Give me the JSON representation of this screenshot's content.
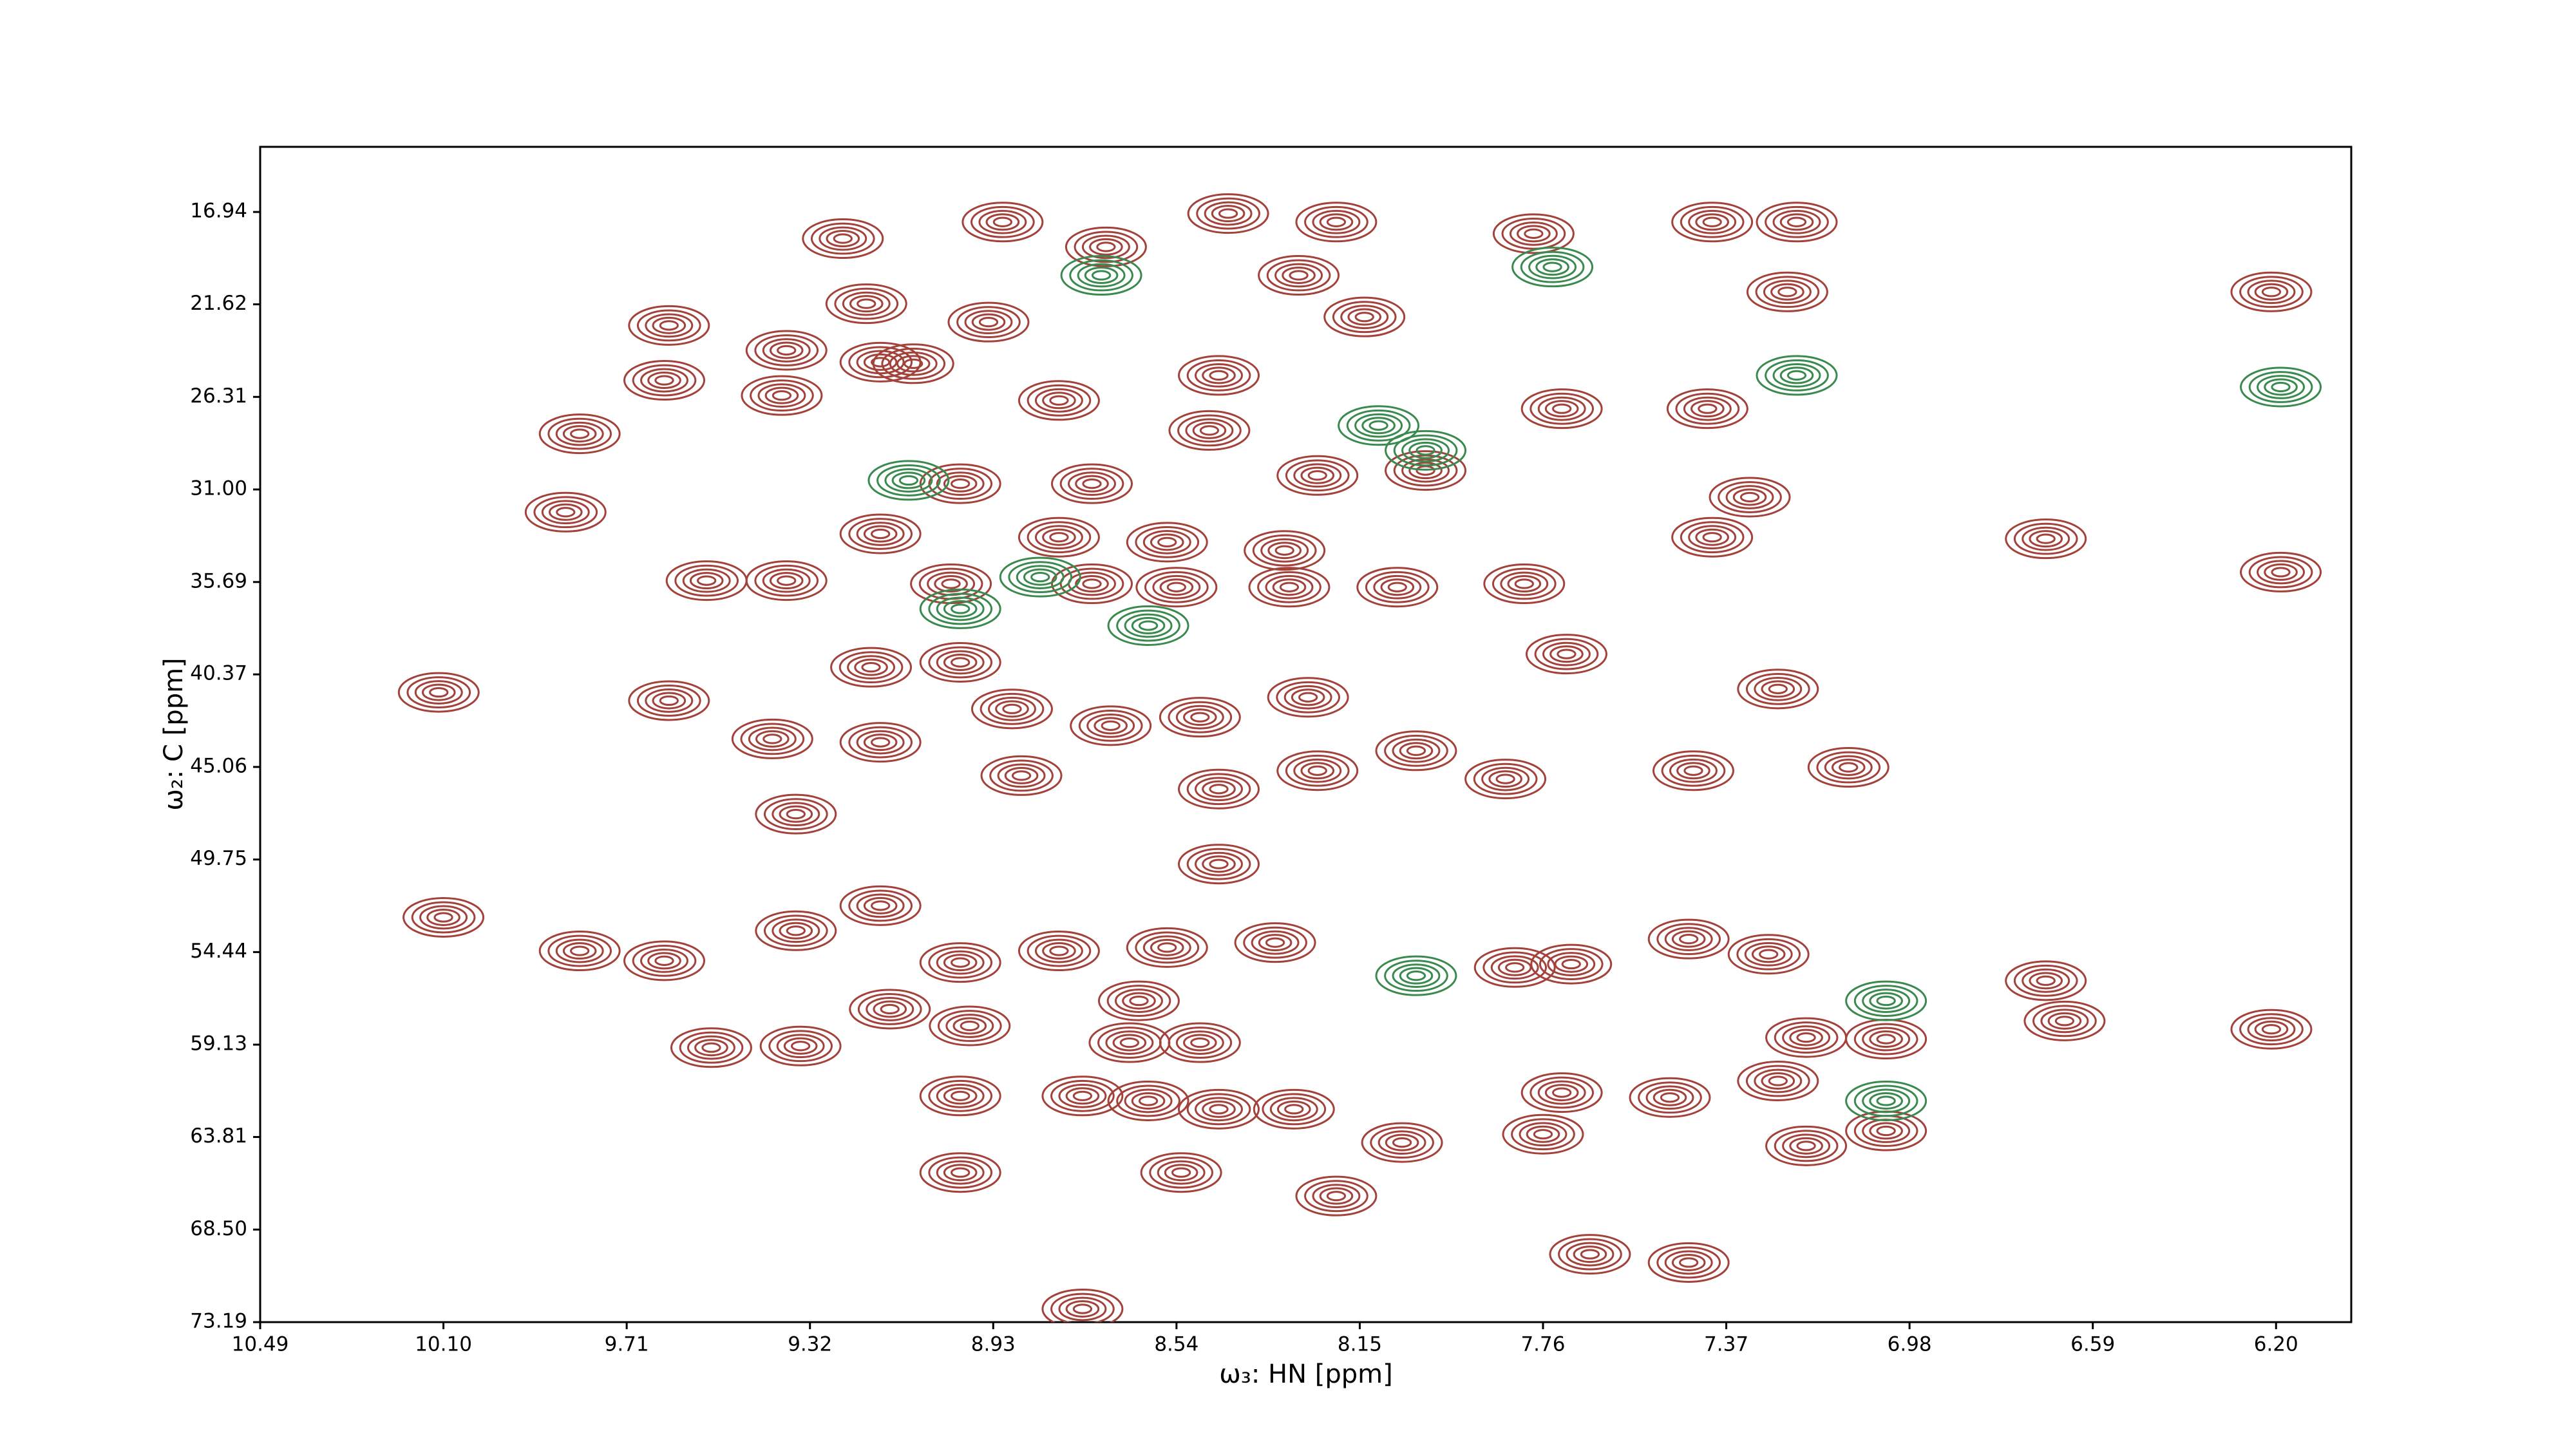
{
  "chart_data": {
    "type": "contour",
    "xlabel": "ω₃: HN [ppm]",
    "ylabel": "ω₂: C [ppm]",
    "xlim": [
      10.49,
      6.04
    ],
    "ylim": [
      73.19,
      13.64
    ],
    "xticks": [
      10.49,
      {
        "value": 10.1,
        "label": "10.10"
      },
      9.71,
      9.32,
      8.93,
      8.54,
      8.15,
      7.76,
      7.37,
      6.98,
      6.59,
      {
        "value": 6.2,
        "label": "6.20"
      }
    ],
    "yticks": [
      16.94,
      21.62,
      26.31,
      {
        "value": 31,
        "label": "31.00"
      },
      35.69,
      40.37,
      45.06,
      49.75,
      54.44,
      59.13,
      63.81,
      {
        "value": 68.5,
        "label": "68.50"
      },
      73.19
    ],
    "series": [
      {
        "color": "#a3413b",
        "x": [
          10.11,
          10.1,
          9.62,
          9.63,
          9.81,
          9.84,
          9.54,
          9.37,
          9.62,
          9.4,
          9.35,
          9.63,
          9.81,
          9.53,
          9.34,
          9.35,
          9.17,
          9.25,
          9.2,
          9.37,
          9.38,
          9.17,
          9.1,
          8.94,
          8.91,
          8.79,
          8.69,
          8.43,
          8.2,
          8.28,
          8.14,
          8.45,
          8.47,
          9.0,
          8.72,
          8.24,
          8.01,
          9.17,
          8.79,
          8.56,
          8.31,
          9.02,
          8.72,
          8.54,
          8.3,
          8.07,
          7.8,
          9.19,
          9.0,
          8.89,
          8.68,
          8.49,
          8.26,
          9.17,
          8.87,
          8.45,
          8.24,
          8.03,
          7.84,
          7.44,
          7.11,
          7.78,
          7.4,
          7.22,
          7.24,
          7.41,
          7.72,
          7.32,
          7.4,
          7.71,
          7.26,
          6.69,
          6.21,
          6.19,
          8.45,
          9.0,
          8.79,
          8.56,
          8.33,
          9.15,
          8.98,
          8.62,
          8.49,
          8.74,
          9.0,
          8.6,
          8.45,
          8.29,
          8.64,
          8.06,
          9.0,
          8.53,
          8.2,
          7.82,
          7.7,
          7.45,
          7.28,
          7.72,
          7.49,
          7.2,
          7.03,
          7.26,
          7.2,
          7.03,
          7.76,
          7.66,
          7.45,
          8.74,
          6.65,
          6.21,
          6.69
        ],
        "values": [
          41.28,
          52.68,
          22.69,
          25.47,
          28.18,
          32.15,
          35.62,
          35.62,
          41.7,
          43.64,
          47.45,
          54.88,
          54.38,
          59.28,
          59.2,
          53.36,
          52.09,
          18.29,
          21.59,
          23.95,
          26.24,
          24.55,
          24.63,
          22.52,
          17.45,
          26.49,
          18.71,
          17.02,
          17.45,
          20.15,
          22.26,
          25.22,
          28.01,
          30.71,
          30.71,
          30.29,
          30.04,
          33.25,
          33.42,
          33.67,
          34.09,
          35.78,
          35.78,
          35.95,
          35.95,
          35.95,
          35.78,
          40.01,
          39.76,
          42.12,
          42.97,
          42.54,
          41.53,
          43.81,
          45.5,
          46.18,
          45.25,
          44.24,
          45.67,
          45.25,
          45.08,
          18.04,
          17.45,
          17.45,
          20.99,
          26.91,
          26.91,
          31.39,
          33.42,
          39.34,
          41.11,
          33.5,
          20.99,
          35.19,
          49.98,
          54.97,
          54.38,
          54.21,
          53.96,
          57.33,
          58.18,
          56.91,
          59.03,
          61.73,
          61.73,
          61.98,
          62.4,
          62.4,
          59.03,
          64.09,
          65.61,
          65.61,
          66.8,
          55.22,
          55.05,
          53.78,
          54.55,
          61.56,
          61.81,
          58.77,
          58.85,
          60.97,
          64.26,
          63.5,
          63.67,
          69.75,
          70.17,
          72.52,
          57.93,
          58.35,
          55.89
        ]
      },
      {
        "color": "#3a8a4f",
        "x": [
          9.11,
          8.11,
          8.01,
          7.74,
          8.03,
          7.03,
          7.03,
          9.0,
          8.6,
          8.7,
          7.22,
          6.19,
          8.83
        ],
        "values": [
          30.54,
          27.76,
          29.02,
          19.73,
          55.64,
          56.91,
          61.98,
          37.05,
          37.9,
          20.15,
          25.22,
          25.81,
          35.44
        ]
      }
    ]
  }
}
